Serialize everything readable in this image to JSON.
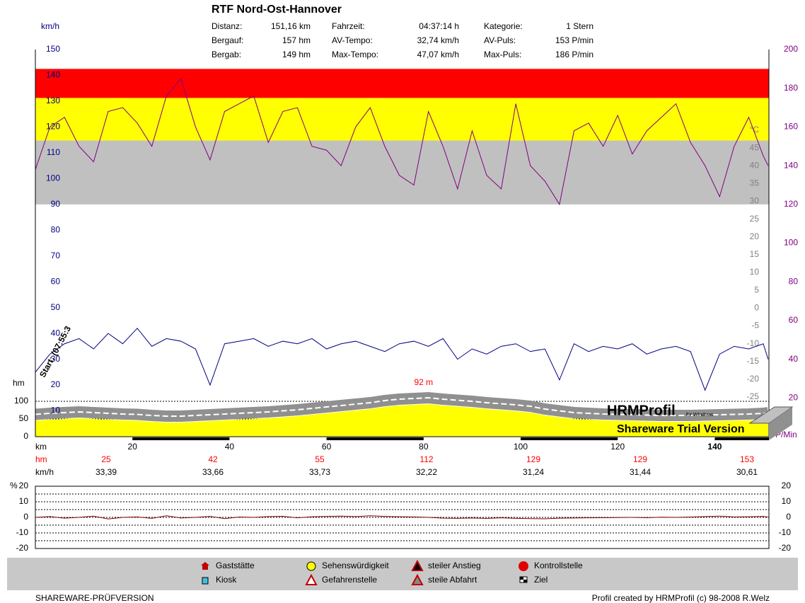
{
  "header": {
    "title": "RTF Nord-Ost-Hannover",
    "stats": [
      [
        "Distanz:",
        "151,16 km"
      ],
      [
        "Bergauf:",
        "157 hm"
      ],
      [
        "Bergab:",
        "149 hm"
      ],
      [
        "Fahrzeit:",
        "04:37:14 h"
      ],
      [
        "AV-Tempo:",
        "32,74 km/h"
      ],
      [
        "Max-Tempo:",
        "47,07 km/h"
      ],
      [
        "Kategorie:",
        "1 Stern"
      ],
      [
        "AV-Puls:",
        "153 P/min"
      ],
      [
        "Max-Puls:",
        "186 P/min"
      ]
    ]
  },
  "chart_data": [
    {
      "type": "line",
      "x_label": "km",
      "y_label": "km/h",
      "y2_label": "P/Min",
      "hm_label": "hm",
      "y3_label": "°C",
      "xlim": [
        0,
        151.16
      ],
      "xticks": [
        20,
        40,
        60,
        80,
        100,
        120,
        140
      ],
      "ylim": [
        0,
        150
      ],
      "yticks": [
        10,
        20,
        30,
        40,
        50,
        60,
        70,
        80,
        90,
        100,
        110,
        120,
        130,
        140,
        150
      ],
      "y2lim": [
        0,
        200
      ],
      "y2ticks": [
        20,
        40,
        60,
        80,
        100,
        120,
        140,
        160,
        180,
        200
      ],
      "hm_lim": [
        0,
        100
      ],
      "hm_ticks": [
        0,
        50,
        100
      ],
      "y3lim": [
        -25,
        50
      ],
      "y3ticks": [
        -25,
        -20,
        -15,
        -10,
        -5,
        0,
        5,
        10,
        15,
        20,
        25,
        30,
        35,
        40,
        45
      ],
      "zones": [
        {
          "from": 120,
          "to": 153,
          "color": "#c0c0c0"
        },
        {
          "from": 153,
          "to": 175,
          "color": "#ffff00"
        },
        {
          "from": 175,
          "to": 190,
          "color": "#ff0000"
        }
      ],
      "x": [
        0,
        3,
        6,
        9,
        12,
        15,
        18,
        21,
        24,
        27,
        30,
        33,
        36,
        39,
        42,
        45,
        48,
        51,
        54,
        57,
        60,
        63,
        66,
        69,
        72,
        75,
        78,
        81,
        84,
        87,
        90,
        93,
        96,
        99,
        102,
        105,
        108,
        111,
        114,
        117,
        120,
        123,
        126,
        129,
        132,
        135,
        138,
        141,
        144,
        147,
        150,
        151
      ],
      "series": [
        {
          "color": "#ffff00",
          "axis": "hm",
          "values": [
            45,
            48,
            50,
            52,
            50,
            48,
            46,
            45,
            42,
            40,
            40,
            42,
            44,
            46,
            48,
            50,
            52,
            55,
            58,
            62,
            66,
            70,
            74,
            78,
            84,
            88,
            90,
            92,
            88,
            85,
            82,
            78,
            75,
            72,
            68,
            60,
            55,
            50,
            48,
            46,
            45,
            44,
            43,
            42,
            42,
            42,
            43,
            44,
            45,
            46,
            48,
            50
          ]
        },
        {
          "color": "#800080",
          "axis": "y2",
          "values": [
            138,
            160,
            165,
            150,
            142,
            168,
            170,
            162,
            150,
            176,
            185,
            160,
            143,
            168,
            172,
            176,
            152,
            168,
            170,
            150,
            148,
            140,
            160,
            170,
            150,
            135,
            130,
            168,
            150,
            128,
            158,
            135,
            128,
            172,
            140,
            132,
            120,
            158,
            162,
            150,
            166,
            146,
            158,
            165,
            172,
            152,
            140,
            124,
            150,
            165,
            145,
            140
          ]
        },
        {
          "color": "#000080",
          "values": [
            25,
            32,
            36,
            38,
            34,
            40,
            36,
            42,
            35,
            38,
            37,
            34,
            20,
            36,
            37,
            38,
            35,
            37,
            36,
            38,
            34,
            36,
            37,
            35,
            33,
            36,
            37,
            35,
            38,
            30,
            34,
            32,
            35,
            36,
            33,
            34,
            22,
            36,
            33,
            35,
            34,
            36,
            32,
            34,
            35,
            33,
            18,
            32,
            35,
            34,
            36,
            30
          ]
        }
      ],
      "annotations": [
        {
          "text": "92 m",
          "x": 80,
          "y": 92
        },
        {
          "text": "Start: (07:55:3",
          "x": 0,
          "y": 30
        }
      ],
      "segments": {
        "hm_label": "hm",
        "kmh_label": "km/h",
        "hm": [
          25,
          42,
          55,
          112,
          129,
          129,
          153
        ],
        "kmh": [
          "33,39",
          "33,66",
          "33,73",
          "32,22",
          "31,24",
          "31,44",
          "30,61"
        ]
      },
      "logo": {
        "title": "HRMProfil",
        "sub": "für Windows",
        "trial": "Shareware Trial  Version"
      }
    },
    {
      "type": "line",
      "y_label": "%",
      "xlim": [
        0,
        151.16
      ],
      "ylim": [
        -20,
        20
      ],
      "yticks": [
        -20,
        -10,
        0,
        10,
        20
      ],
      "x": [
        0,
        3,
        6,
        9,
        12,
        15,
        18,
        21,
        24,
        27,
        30,
        33,
        36,
        39,
        42,
        45,
        48,
        51,
        54,
        57,
        60,
        63,
        66,
        69,
        72,
        75,
        78,
        81,
        84,
        87,
        90,
        93,
        96,
        99,
        102,
        105,
        108,
        111,
        114,
        117,
        120,
        123,
        126,
        129,
        132,
        135,
        138,
        141,
        144,
        147,
        150,
        151
      ],
      "series": [
        {
          "color": "#800000",
          "values": [
            0,
            0.5,
            -0.5,
            0,
            0.8,
            -1,
            0,
            0.3,
            -0.6,
            1,
            -0.4,
            0,
            0.6,
            -0.8,
            0.2,
            0,
            0.5,
            0.7,
            -0.3,
            0.4,
            0.6,
            0.8,
            0.5,
            1,
            0.6,
            0.4,
            0.3,
            0,
            -0.5,
            -0.6,
            -0.4,
            -0.7,
            -0.3,
            -0.6,
            -0.8,
            -0.9,
            -0.5,
            -0.4,
            -0.3,
            -0.2,
            -0.1,
            0,
            -0.2,
            0.1,
            0,
            0.2,
            0.5,
            0.8,
            0.3,
            0.4,
            0.6,
            0.2
          ]
        }
      ]
    }
  ],
  "legend": [
    {
      "label": "Gaststätte",
      "icon": "house"
    },
    {
      "label": "Kiosk",
      "icon": "cup"
    },
    {
      "label": "Sehenswürdigkeit",
      "icon": "smile"
    },
    {
      "label": "Gefahrenstelle",
      "icon": "warn"
    },
    {
      "label": "steiler Anstieg",
      "icon": "up"
    },
    {
      "label": "steile Abfahrt",
      "icon": "down"
    },
    {
      "label": "Kontrollstelle",
      "icon": "stop"
    },
    {
      "label": "Ziel",
      "icon": "flag"
    }
  ],
  "footer": {
    "left": "SHAREWARE-PRÜFVERSION",
    "right": "Profil created by HRMProfil (c) 98-2008 R.Welz"
  }
}
